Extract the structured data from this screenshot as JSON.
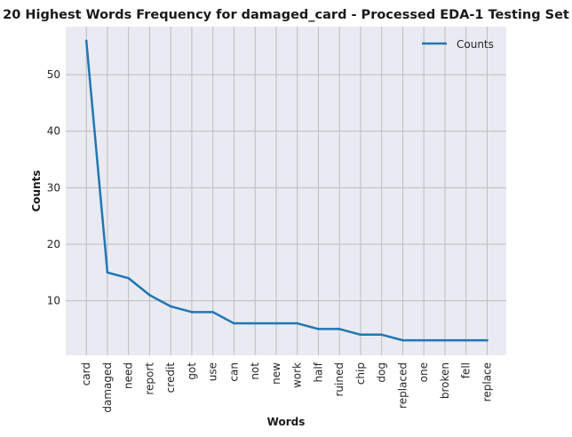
{
  "chart_data": {
    "type": "line",
    "title": "20 Highest Words Frequency for damaged_card - Processed EDA-1 Testing Set",
    "xlabel": "Words",
    "ylabel": "Counts",
    "categories": [
      "card",
      "damaged",
      "need",
      "report",
      "credit",
      "got",
      "use",
      "can",
      "not",
      "new",
      "work",
      "half",
      "ruined",
      "chip",
      "dog",
      "replaced",
      "one",
      "broken",
      "fell",
      "replace"
    ],
    "series": [
      {
        "name": "Counts",
        "values": [
          56,
          15,
          14,
          11,
          9,
          8,
          8,
          6,
          6,
          6,
          6,
          5,
          5,
          4,
          4,
          3,
          3,
          3,
          3,
          3
        ]
      }
    ],
    "ylim": [
      0.35,
      58.5
    ],
    "yticks": [
      10,
      20,
      30,
      40,
      50
    ],
    "grid": true,
    "legend_position": "top-right",
    "colors": {
      "plot_background": "#eaeaf2",
      "grid": "#bdbdbd",
      "line": "#1f77b4"
    }
  }
}
